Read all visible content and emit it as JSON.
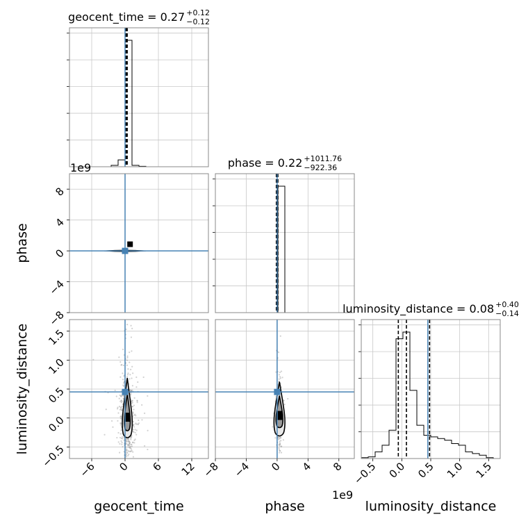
{
  "chart_data": {
    "type": "corner",
    "parameters": [
      "geocent_time",
      "phase",
      "luminosity_distance"
    ],
    "truth_color": "#4682b4",
    "hist_titles": [
      {
        "name": "geocent_time = 0.27",
        "sup": "+0.12",
        "sub": "−0.12"
      },
      {
        "name": "phase = 0.22",
        "sup": "+1011.76",
        "sub": "−922.36"
      },
      {
        "name": "luminosity_distance = 0.08",
        "sup": "+0.40",
        "sub": "−0.14"
      }
    ],
    "axis_labels": {
      "x": [
        "geocent_time",
        "phase",
        "luminosity_distance"
      ],
      "y": [
        "phase",
        "luminosity_distance"
      ]
    },
    "scale_labels": {
      "phase_y": "1e9",
      "phase_x": "1e9"
    },
    "ranges": {
      "geocent_time": [
        -10,
        15
      ],
      "phase": [
        -8,
        10
      ],
      "luminosity_distance": [
        -0.7,
        1.7
      ]
    },
    "ticks": {
      "geocent_time": [
        -6,
        0,
        6,
        12
      ],
      "phase": [
        -8,
        -4,
        0,
        4,
        8
      ],
      "luminosity_distance": [
        -0.5,
        0.0,
        0.5,
        1.0,
        1.5
      ]
    },
    "tick_labels": {
      "geocent_time": [
        "−6",
        "0",
        "6",
        "12"
      ],
      "phase": [
        "−8",
        "−4",
        "0",
        "4",
        "8"
      ],
      "luminosity_distance_x": [
        "−0.5",
        "0.0",
        "0.5",
        "1.0",
        "1.5"
      ],
      "luminosity_distance_y": [
        "−0.5",
        "0.0",
        "0.5",
        "1.0",
        "1.5"
      ]
    },
    "truths": {
      "geocent_time": 0,
      "phase": 0,
      "luminosity_distance": 0.45
    },
    "quantiles": {
      "geocent_time": [
        0.15,
        0.27,
        0.39
      ],
      "phase": [
        -0.1,
        0.0,
        0.1
      ],
      "luminosity_distance": [
        -0.06,
        0.08,
        0.48
      ]
    },
    "histograms": {
      "geocent_time": {
        "edges": [
          -10,
          -8.75,
          -7.5,
          -6.25,
          -5,
          -3.75,
          -2.5,
          -1.25,
          0,
          1.25,
          2.5,
          3.75,
          5,
          6.25,
          7.5,
          8.75,
          10,
          11.25,
          12.5,
          13.75,
          15
        ],
        "counts": [
          0,
          0,
          0,
          0,
          0,
          0,
          1,
          5,
          92,
          1,
          0.3,
          0,
          0,
          0,
          0,
          0,
          0,
          0,
          0,
          0
        ]
      },
      "phase": {
        "edges": [
          -8,
          -7.1,
          -6.2,
          -5.3,
          -4.4,
          -3.5,
          -2.6,
          -1.7,
          -0.8,
          0.1,
          1.0,
          1.9,
          2.8,
          3.7,
          4.6,
          5.5,
          6.4,
          7.3,
          8.2,
          9.1,
          10
        ],
        "counts": [
          0,
          0,
          0,
          0,
          0,
          0,
          0,
          0,
          0,
          96,
          0,
          0,
          0,
          0,
          0,
          0,
          0,
          0,
          0,
          0
        ]
      },
      "luminosity_distance": {
        "edges": [
          -0.7,
          -0.58,
          -0.46,
          -0.34,
          -0.22,
          -0.1,
          0.02,
          0.14,
          0.26,
          0.38,
          0.5,
          0.62,
          0.74,
          0.86,
          0.98,
          1.1,
          1.22,
          1.34,
          1.46,
          1.58,
          1.7
        ],
        "counts": [
          0.5,
          1,
          4,
          8,
          17,
          72,
          76,
          41,
          20,
          14,
          13,
          12,
          11,
          9,
          8,
          4,
          3,
          2,
          0.5,
          0
        ]
      }
    },
    "peaks": {
      "geocent_time_phase": [
        0.4,
        0.5
      ],
      "geocent_time_luminosity_distance": [
        0.4,
        0.02
      ],
      "phase_luminosity_distance": [
        0.3,
        0.05
      ]
    }
  }
}
